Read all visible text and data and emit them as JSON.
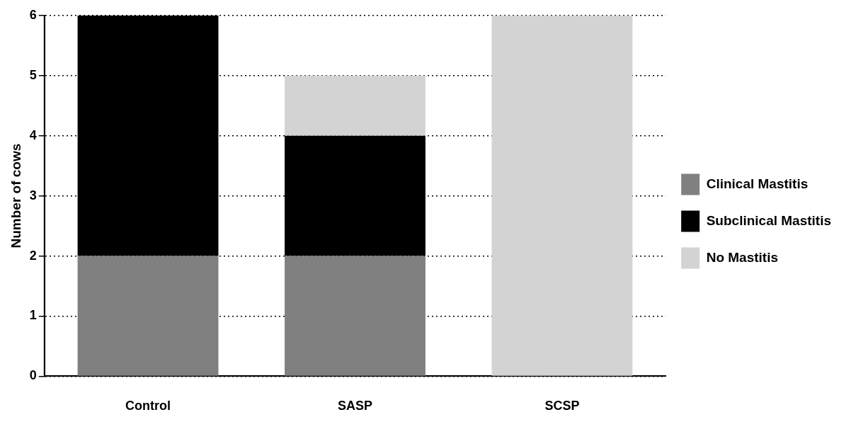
{
  "chart_data": {
    "type": "bar",
    "stacked": true,
    "ylabel": "Number of cows",
    "categories": [
      "Control",
      "SASP",
      "SCSP"
    ],
    "series": [
      {
        "name": "Clinical Mastitis",
        "color": "#808080",
        "values": [
          2,
          2,
          0
        ]
      },
      {
        "name": "Subclinical Mastitis",
        "color": "#000000",
        "values": [
          4,
          2,
          0
        ]
      },
      {
        "name": "No Mastitis",
        "color": "#d3d3d3",
        "values": [
          0,
          1,
          6
        ]
      }
    ],
    "ylim": [
      0,
      6
    ],
    "yticks": [
      0,
      1,
      2,
      3,
      4,
      5,
      6
    ],
    "grid": "y",
    "legend": "right"
  }
}
